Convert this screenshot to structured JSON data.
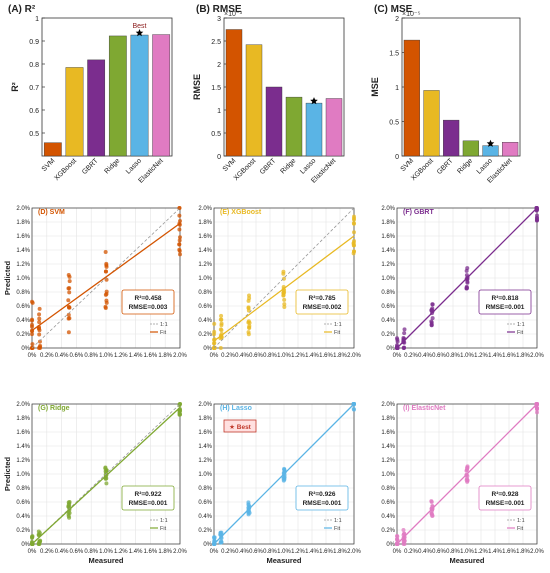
{
  "colors": {
    "SVM": "#d35400",
    "XGBoost": "#e8b923",
    "GBRT": "#7b2d8e",
    "Ridge": "#7fa832",
    "Lasso": "#5ab4e5",
    "ElasticNet": "#e07bc2",
    "best_marker": "#000000",
    "best_box_fill": "#ffe0e0",
    "best_box_stroke": "#c0392b",
    "ideal_line": "#999999"
  },
  "chart_data": [
    {
      "id": "A",
      "type": "bar",
      "title": "(A) R²",
      "ylabel": "R²",
      "categories": [
        "SVM",
        "XGBoost",
        "GBRT",
        "Ridge",
        "Lasso",
        "ElasticNet"
      ],
      "values": [
        0.458,
        0.785,
        0.818,
        0.922,
        0.926,
        0.928
      ],
      "ylim": [
        0.4,
        1.0
      ],
      "yticks": [
        "0.5",
        "0.6",
        "0.7",
        "0.8",
        "0.9",
        "1"
      ],
      "exponent": "",
      "best_index": 4,
      "best_label": "Best"
    },
    {
      "id": "B",
      "type": "bar",
      "title": "(B) RMSE",
      "ylabel": "RMSE",
      "categories": [
        "SVM",
        "XGBoost",
        "GBRT",
        "Ridge",
        "Lasso",
        "ElasticNet"
      ],
      "values": [
        2.75,
        2.42,
        1.5,
        1.28,
        1.15,
        1.25
      ],
      "ylim": [
        0,
        3
      ],
      "yticks": [
        "0",
        "0.5",
        "1",
        "1.5",
        "2",
        "2.5",
        "3"
      ],
      "exponent": "×10⁻³",
      "best_index": 4,
      "best_label": ""
    },
    {
      "id": "C",
      "type": "bar",
      "title": "(C) MSE",
      "ylabel": "MSE",
      "categories": [
        "SVM",
        "XGBoost",
        "GBRT",
        "Ridge",
        "Lasso",
        "ElasticNet"
      ],
      "values": [
        1.68,
        0.95,
        0.52,
        0.22,
        0.15,
        0.2
      ],
      "ylim": [
        0,
        2
      ],
      "yticks": [
        "0",
        "0.5",
        "1",
        "1.5",
        "2"
      ],
      "exponent": "×10⁻⁵",
      "best_index": 4,
      "best_label": ""
    },
    {
      "id": "D",
      "type": "scatter",
      "title": "(D) SVM",
      "model": "SVM",
      "r2_label": "R²=0.458",
      "rmse_label": "RMSE=0.003",
      "fit": [
        0.0,
        0.25,
        2.0,
        1.78
      ],
      "spread": 0.45
    },
    {
      "id": "E",
      "type": "scatter",
      "title": "(E) XGBoost",
      "model": "XGBoost",
      "r2_label": "R²=0.785",
      "rmse_label": "RMSE=0.002",
      "fit": [
        0.0,
        0.1,
        2.0,
        1.6
      ],
      "spread": 0.3
    },
    {
      "id": "F",
      "type": "scatter",
      "title": "(F) GBRT",
      "model": "GBRT",
      "r2_label": "R²=0.818",
      "rmse_label": "RMSE=0.001",
      "fit": [
        0.0,
        0.0,
        2.0,
        2.0
      ],
      "spread": 0.18
    },
    {
      "id": "G",
      "type": "scatter",
      "title": "(G) Ridge",
      "model": "Ridge",
      "r2_label": "R²=0.922",
      "rmse_label": "RMSE=0.001",
      "fit": [
        0.0,
        0.0,
        2.0,
        1.95
      ],
      "spread": 0.12
    },
    {
      "id": "H",
      "type": "scatter",
      "title": "(H) Lasso",
      "model": "Lasso",
      "r2_label": "R²=0.926",
      "rmse_label": "RMSE=0.001",
      "fit": [
        0.0,
        0.0,
        2.0,
        2.0
      ],
      "spread": 0.1,
      "best_badge": "★ Best"
    },
    {
      "id": "I",
      "type": "scatter",
      "title": "(I) ElasticNet",
      "model": "ElasticNet",
      "r2_label": "R²=0.928",
      "rmse_label": "RMSE=0.001",
      "fit": [
        0.0,
        0.0,
        2.0,
        2.0
      ],
      "spread": 0.12
    }
  ],
  "scatter_axes": {
    "xticks": [
      "0%",
      "0.2%",
      "0.4%",
      "0.6%",
      "0.8%",
      "1.0%",
      "1.2%",
      "1.4%",
      "1.6%",
      "1.8%",
      "2.0%"
    ],
    "yticks": [
      "0%",
      "0.2%",
      "0.4%",
      "0.6%",
      "0.8%",
      "1.0%",
      "1.2%",
      "1.4%",
      "1.6%",
      "1.8%",
      "2.0%"
    ],
    "xlabel": "Measured",
    "ylabel": "Predicted",
    "legend_ideal": "1:1",
    "legend_fit": "Fit",
    "measured_levels": [
      0.0,
      0.1,
      0.5,
      1.0,
      2.0
    ]
  }
}
